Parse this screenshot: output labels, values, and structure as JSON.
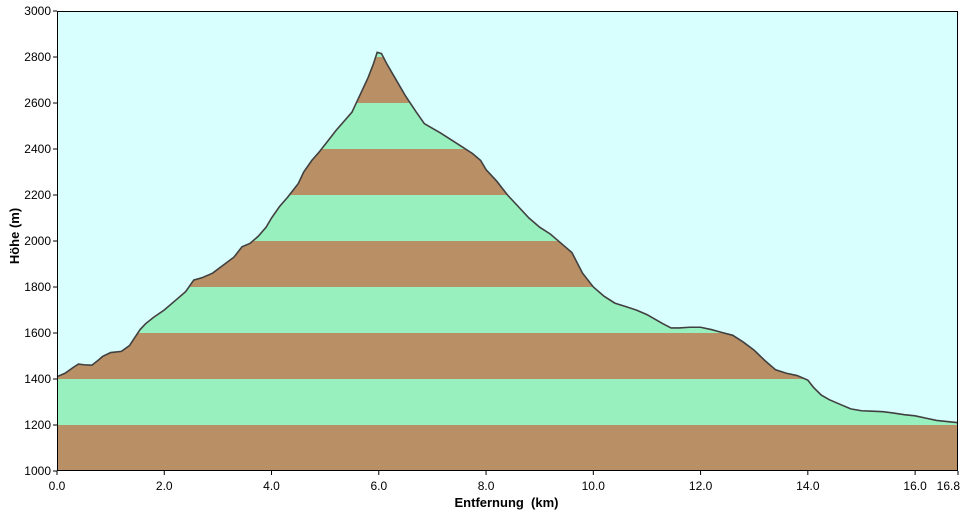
{
  "chart_data": {
    "type": "area",
    "xlabel": "Entfernung  (km)",
    "ylabel": "Höhe (m)",
    "xlim": [
      0,
      16.8
    ],
    "ylim": [
      1000,
      3000
    ],
    "x_ticks": [
      0,
      2,
      4,
      6,
      8,
      10,
      12,
      14,
      16,
      16.8
    ],
    "x_tick_labels": [
      "0.0",
      "2.0",
      "4.0",
      "6.0",
      "8.0",
      "10.0",
      "12.0",
      "14.0",
      "16.0",
      "16.8"
    ],
    "y_ticks": [
      1000,
      1200,
      1400,
      1600,
      1800,
      2000,
      2200,
      2400,
      2600,
      2800,
      3000
    ],
    "y_tick_labels": [
      "1000",
      "1200",
      "1400",
      "1600",
      "1800",
      "2000",
      "2200",
      "2400",
      "2600",
      "2800",
      "3000"
    ],
    "band_interval_m": 200,
    "grid": false,
    "colors": {
      "sky": "#d9fefe",
      "band_brown": "#b98f66",
      "band_green": "#99f0bf",
      "profile_line": "#404040",
      "axis": "#000000"
    },
    "x": [
      0,
      0.15,
      0.3,
      0.4,
      0.5,
      0.65,
      0.75,
      0.85,
      1.0,
      1.2,
      1.35,
      1.45,
      1.55,
      1.65,
      1.8,
      2.0,
      2.2,
      2.4,
      2.55,
      2.7,
      2.9,
      3.1,
      3.3,
      3.45,
      3.6,
      3.75,
      3.9,
      4.0,
      4.15,
      4.3,
      4.5,
      4.6,
      4.75,
      4.9,
      5.05,
      5.2,
      5.35,
      5.5,
      5.6,
      5.7,
      5.8,
      5.9,
      5.97,
      6.05,
      6.15,
      6.3,
      6.5,
      6.7,
      6.85,
      7.0,
      7.15,
      7.35,
      7.55,
      7.75,
      7.9,
      8.0,
      8.2,
      8.4,
      8.6,
      8.8,
      9.0,
      9.2,
      9.4,
      9.6,
      9.8,
      10.0,
      10.2,
      10.4,
      10.6,
      10.8,
      11.0,
      11.15,
      11.3,
      11.45,
      11.6,
      11.8,
      12.0,
      12.2,
      12.4,
      12.6,
      12.8,
      13.0,
      13.2,
      13.4,
      13.6,
      13.8,
      14.0,
      14.1,
      14.25,
      14.4,
      14.6,
      14.8,
      15.0,
      15.2,
      15.4,
      15.6,
      15.8,
      16.0,
      16.2,
      16.4,
      16.6,
      16.8
    ],
    "y": [
      1410,
      1425,
      1450,
      1465,
      1462,
      1460,
      1478,
      1498,
      1515,
      1520,
      1545,
      1580,
      1615,
      1640,
      1668,
      1700,
      1740,
      1780,
      1830,
      1840,
      1860,
      1895,
      1930,
      1975,
      1990,
      2020,
      2060,
      2100,
      2150,
      2190,
      2250,
      2300,
      2350,
      2390,
      2435,
      2480,
      2520,
      2560,
      2610,
      2660,
      2710,
      2770,
      2820,
      2815,
      2770,
      2710,
      2630,
      2560,
      2510,
      2490,
      2470,
      2440,
      2410,
      2380,
      2350,
      2310,
      2260,
      2200,
      2150,
      2100,
      2060,
      2030,
      1990,
      1950,
      1860,
      1800,
      1760,
      1730,
      1715,
      1700,
      1680,
      1660,
      1640,
      1622,
      1622,
      1625,
      1625,
      1615,
      1602,
      1590,
      1560,
      1525,
      1480,
      1440,
      1425,
      1415,
      1395,
      1365,
      1330,
      1310,
      1290,
      1270,
      1262,
      1260,
      1258,
      1252,
      1245,
      1240,
      1230,
      1220,
      1215,
      1210
    ]
  }
}
